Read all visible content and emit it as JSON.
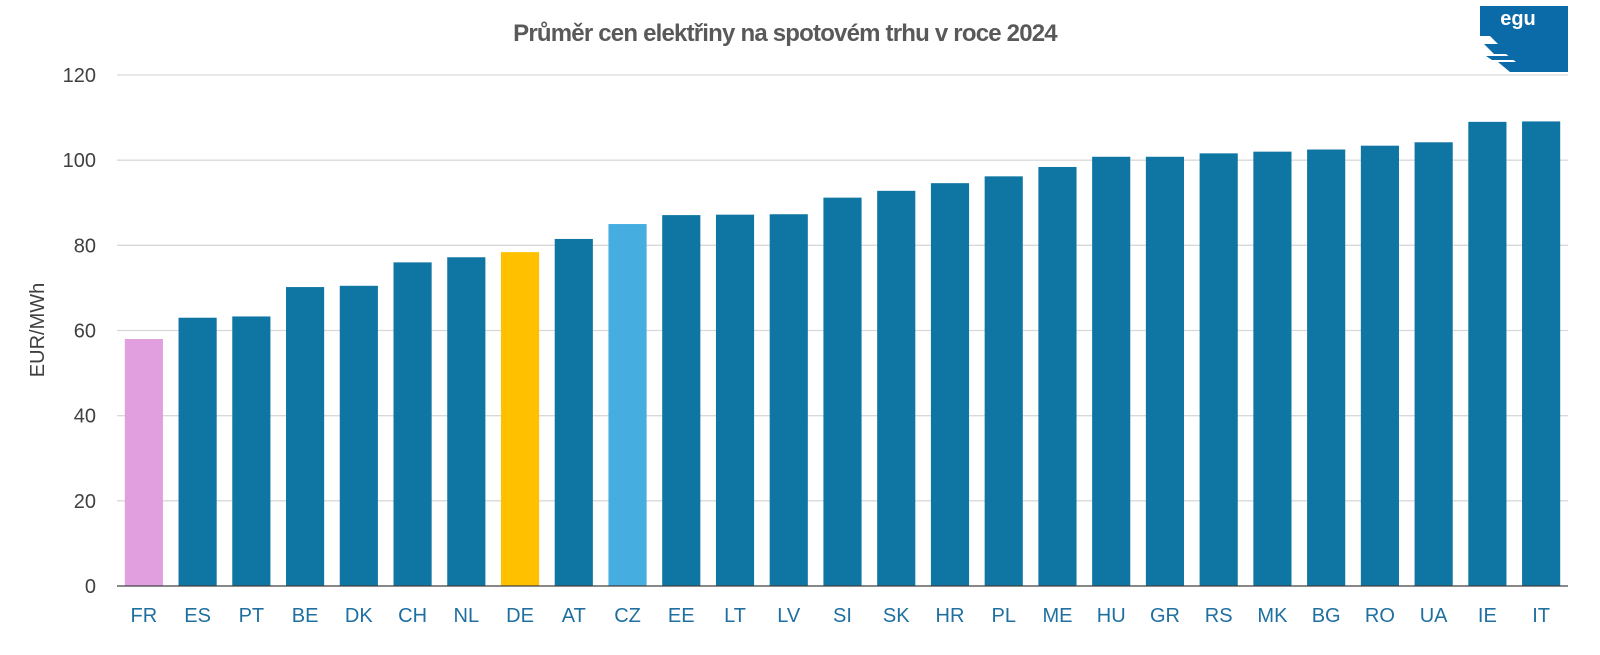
{
  "logo": {
    "text": "egu",
    "color": "#0b6aa8"
  },
  "chart_data": {
    "type": "bar",
    "title": "Průměr cen elektřiny na spotovém trhu v roce 2024",
    "xlabel": "",
    "ylabel": "EUR/MWh",
    "ylim": [
      0,
      120
    ],
    "yticks": [
      0,
      20,
      40,
      60,
      80,
      100,
      120
    ],
    "grid": true,
    "legend": "none",
    "categories": [
      "FR",
      "ES",
      "PT",
      "BE",
      "DK",
      "CH",
      "NL",
      "DE",
      "AT",
      "CZ",
      "EE",
      "LT",
      "LV",
      "SI",
      "SK",
      "HR",
      "PL",
      "ME",
      "HU",
      "GR",
      "RS",
      "MK",
      "BG",
      "RO",
      "UA",
      "IE",
      "IT"
    ],
    "values": [
      58,
      63,
      63.3,
      70.2,
      70.5,
      76,
      77.2,
      78.4,
      81.5,
      85,
      87.1,
      87.2,
      87.3,
      91.2,
      92.8,
      94.6,
      96.2,
      98.4,
      100.8,
      100.8,
      101.6,
      102,
      102.5,
      103.4,
      104.2,
      109,
      109.1
    ],
    "colors": {
      "default": "#0f76a3",
      "FR": "#e19fdf",
      "DE": "#ffc000",
      "CZ": "#45ade0"
    },
    "tick_label_color": "#1f6fa0",
    "gridline_color": "#d9d9d9"
  }
}
